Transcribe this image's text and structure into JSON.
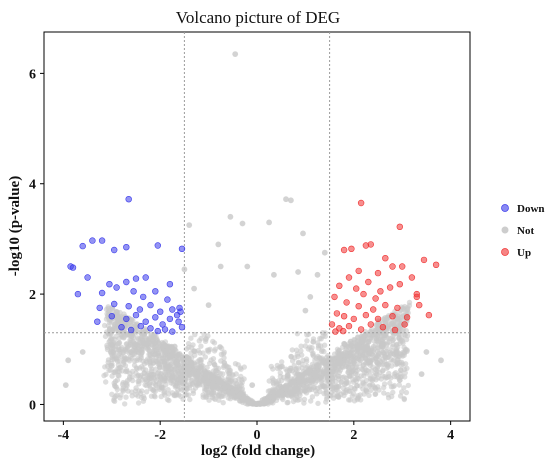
{
  "chart_data": {
    "type": "scatter",
    "title": "Volcano picture of DEG",
    "xlabel": "log2 (fold change)",
    "ylabel": "-log10 (p-value)",
    "xlim": [
      -4.4,
      4.4
    ],
    "ylim": [
      -0.3,
      6.75
    ],
    "xticks": [
      -4,
      -2,
      0,
      2,
      4
    ],
    "yticks": [
      0,
      2,
      4,
      6
    ],
    "thresholds": {
      "log2fc": [
        -1.5,
        1.5
      ],
      "neglog10p": 1.3
    },
    "grid": false,
    "legend_position": "right",
    "series": [
      {
        "name": "Down",
        "color": "#3B3BEB",
        "points": [
          [
            -2.65,
            3.72
          ],
          [
            -3.4,
            2.97
          ],
          [
            -3.2,
            2.97
          ],
          [
            -3.6,
            2.87
          ],
          [
            -2.95,
            2.8
          ],
          [
            -2.7,
            2.85
          ],
          [
            -2.05,
            2.88
          ],
          [
            -1.55,
            2.82
          ],
          [
            -3.85,
            2.5
          ],
          [
            -3.8,
            2.48
          ],
          [
            -3.5,
            2.3
          ],
          [
            -3.05,
            2.18
          ],
          [
            -2.7,
            2.22
          ],
          [
            -2.5,
            2.28
          ],
          [
            -2.3,
            2.3
          ],
          [
            -1.8,
            2.18
          ],
          [
            -3.7,
            2.0
          ],
          [
            -3.2,
            2.02
          ],
          [
            -2.9,
            2.12
          ],
          [
            -2.55,
            2.05
          ],
          [
            -2.35,
            1.95
          ],
          [
            -2.1,
            2.05
          ],
          [
            -1.85,
            1.9
          ],
          [
            -3.25,
            1.75
          ],
          [
            -2.95,
            1.82
          ],
          [
            -2.65,
            1.78
          ],
          [
            -2.42,
            1.72
          ],
          [
            -2.2,
            1.8
          ],
          [
            -2.0,
            1.68
          ],
          [
            -1.75,
            1.72
          ],
          [
            -1.6,
            1.75
          ],
          [
            -3.0,
            1.6
          ],
          [
            -2.7,
            1.55
          ],
          [
            -2.5,
            1.62
          ],
          [
            -2.3,
            1.5
          ],
          [
            -2.1,
            1.58
          ],
          [
            -1.95,
            1.45
          ],
          [
            -1.8,
            1.55
          ],
          [
            -1.65,
            1.62
          ],
          [
            -1.55,
            1.4
          ],
          [
            -3.3,
            1.5
          ],
          [
            -2.8,
            1.4
          ],
          [
            -2.6,
            1.35
          ],
          [
            -2.4,
            1.42
          ],
          [
            -2.2,
            1.38
          ],
          [
            -2.05,
            1.33
          ],
          [
            -1.9,
            1.36
          ],
          [
            -1.75,
            1.32
          ],
          [
            -1.62,
            1.5
          ],
          [
            -1.58,
            1.68
          ]
        ]
      },
      {
        "name": "Not",
        "color": "#C8C8C8",
        "points": [
          [
            -0.45,
            6.35
          ],
          [
            -0.55,
            3.4
          ],
          [
            -0.3,
            3.28
          ],
          [
            0.25,
            3.3
          ],
          [
            0.6,
            3.72
          ],
          [
            0.7,
            3.7
          ],
          [
            -1.4,
            3.25
          ],
          [
            -1.5,
            2.45
          ],
          [
            1.4,
            2.75
          ],
          [
            1.25,
            2.35
          ],
          [
            -0.8,
            2.9
          ],
          [
            0.95,
            3.1
          ],
          [
            -0.75,
            2.5
          ],
          [
            0.85,
            2.4
          ],
          [
            -1.3,
            2.1
          ],
          [
            1.1,
            1.95
          ],
          [
            -0.2,
            2.5
          ],
          [
            0.35,
            2.35
          ],
          [
            -1.0,
            1.8
          ],
          [
            1.0,
            1.7
          ],
          [
            -3.9,
            0.8
          ],
          [
            -3.95,
            0.35
          ],
          [
            -3.6,
            0.95
          ],
          [
            -3.0,
            0.7
          ],
          [
            -2.6,
            0.95
          ],
          [
            3.5,
            0.95
          ],
          [
            3.8,
            0.8
          ],
          [
            3.4,
            0.55
          ],
          [
            2.9,
            0.75
          ],
          [
            2.6,
            1.05
          ],
          [
            -2.2,
            1.15
          ],
          [
            2.2,
            1.15
          ],
          [
            -1.7,
            1.05
          ],
          [
            1.8,
            1.1
          ],
          [
            -0.1,
            0.35
          ]
        ]
      },
      {
        "name": "Up",
        "color": "#F03232",
        "points": [
          [
            2.15,
            3.65
          ],
          [
            2.95,
            3.22
          ],
          [
            2.35,
            2.9
          ],
          [
            2.25,
            2.88
          ],
          [
            1.95,
            2.82
          ],
          [
            1.8,
            2.8
          ],
          [
            2.65,
            2.65
          ],
          [
            2.8,
            2.5
          ],
          [
            3.0,
            2.5
          ],
          [
            3.45,
            2.62
          ],
          [
            3.7,
            2.53
          ],
          [
            2.1,
            2.42
          ],
          [
            2.5,
            2.38
          ],
          [
            1.9,
            2.3
          ],
          [
            2.3,
            2.22
          ],
          [
            3.2,
            2.3
          ],
          [
            1.7,
            2.15
          ],
          [
            2.05,
            2.1
          ],
          [
            2.55,
            2.05
          ],
          [
            2.75,
            2.12
          ],
          [
            2.95,
            2.18
          ],
          [
            1.6,
            1.95
          ],
          [
            2.2,
            2.0
          ],
          [
            2.45,
            1.92
          ],
          [
            3.3,
            2.0
          ],
          [
            1.85,
            1.85
          ],
          [
            2.1,
            1.78
          ],
          [
            2.4,
            1.72
          ],
          [
            2.65,
            1.8
          ],
          [
            2.9,
            1.75
          ],
          [
            3.35,
            1.8
          ],
          [
            3.3,
            1.95
          ],
          [
            1.65,
            1.65
          ],
          [
            1.8,
            1.6
          ],
          [
            2.0,
            1.55
          ],
          [
            2.25,
            1.62
          ],
          [
            2.5,
            1.55
          ],
          [
            2.8,
            1.6
          ],
          [
            3.1,
            1.58
          ],
          [
            3.55,
            1.62
          ],
          [
            1.55,
            1.45
          ],
          [
            1.7,
            1.38
          ],
          [
            1.9,
            1.42
          ],
          [
            2.15,
            1.36
          ],
          [
            2.35,
            1.45
          ],
          [
            2.6,
            1.4
          ],
          [
            2.85,
            1.35
          ],
          [
            3.05,
            1.45
          ],
          [
            1.62,
            1.32
          ],
          [
            1.78,
            1.33
          ]
        ]
      }
    ]
  }
}
